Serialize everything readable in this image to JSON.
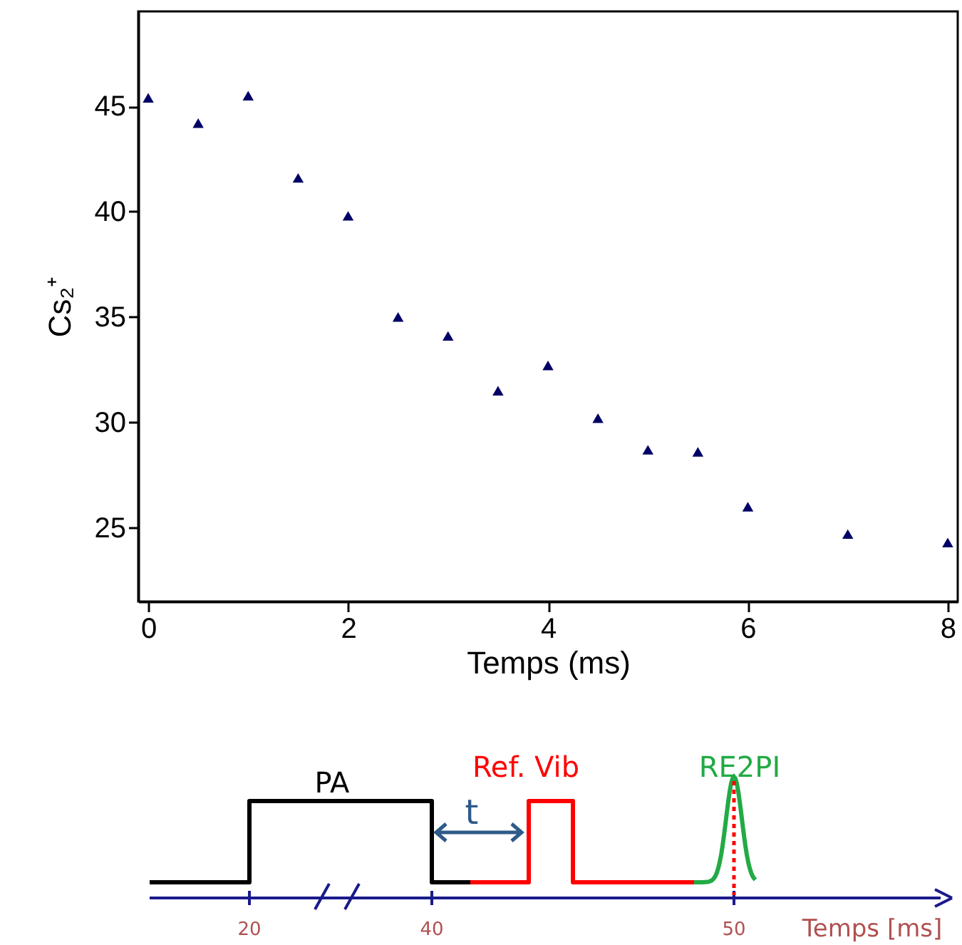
{
  "chart_data": {
    "type": "scatter",
    "xlabel": "Temps (ms)",
    "ylabel": "Cs₂⁺",
    "x": [
      0,
      0.5,
      1,
      1.5,
      2,
      2.5,
      3,
      3.5,
      4,
      4.5,
      5,
      5.5,
      6,
      7,
      8
    ],
    "series": [
      {
        "color": "#000066",
        "values": [
          45.4,
          44.2,
          45.5,
          41.6,
          39.8,
          35.0,
          34.1,
          31.5,
          32.7,
          30.2,
          28.7,
          28.6,
          26.0,
          24.7,
          24.3
        ]
      }
    ],
    "xlim": [
      -0.1,
      8.1
    ],
    "xticks": [
      0,
      2,
      4,
      6,
      8
    ],
    "ylim": [
      21.5,
      49.5
    ],
    "yticks": [
      25,
      30,
      35,
      40,
      45
    ],
    "marker": "triangle",
    "grid": false,
    "annotations": [
      "PA",
      "t",
      "Ref. Vib",
      "RE2PI",
      "20",
      "40",
      "50",
      "Temps [ms]"
    ]
  }
}
